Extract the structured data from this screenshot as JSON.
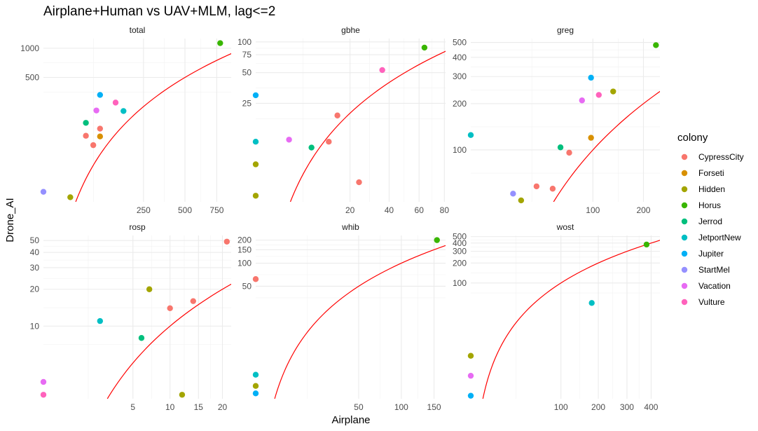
{
  "chart_data": {
    "type": "scatter",
    "title": "Airplane+Human vs UAV+MLM, lag<=2",
    "xlabel": "Airplane",
    "ylabel": "Drone_AI",
    "x_scale": "sqrt",
    "y_scale": "log10",
    "reference_line": "y = x",
    "grid": true,
    "legend": {
      "title": "colony",
      "position": "right",
      "entries": [
        {
          "name": "CypressCity",
          "color": "#F8766D"
        },
        {
          "name": "Forseti",
          "color": "#D89000"
        },
        {
          "name": "Hidden",
          "color": "#A3A500"
        },
        {
          "name": "Horus",
          "color": "#39B600"
        },
        {
          "name": "Jerrod",
          "color": "#00BF7D"
        },
        {
          "name": "JetportNew",
          "color": "#00BFC4"
        },
        {
          "name": "Jupiter",
          "color": "#00B0F6"
        },
        {
          "name": "StartMel",
          "color": "#9590FF"
        },
        {
          "name": "Vacation",
          "color": "#E76BF3"
        },
        {
          "name": "Vulture",
          "color": "#FF62BC"
        }
      ]
    },
    "panels": [
      {
        "name": "total",
        "xlim": [
          0,
          880
        ],
        "ylim": [
          26,
          1260
        ],
        "x_ticks": [
          250,
          500,
          750
        ],
        "x_tick_labels": [
          "250",
          "500",
          "750"
        ],
        "y_ticks": [
          500,
          1000
        ],
        "y_tick_labels": [
          "500",
          "1000"
        ],
        "points": [
          {
            "colony": "CypressCity",
            "x": 45,
            "y": 125
          },
          {
            "colony": "CypressCity",
            "x": 62,
            "y": 100
          },
          {
            "colony": "CypressCity",
            "x": 80,
            "y": 148
          },
          {
            "colony": "Forseti",
            "x": 80,
            "y": 123
          },
          {
            "colony": "Hidden",
            "x": 18,
            "y": 29
          },
          {
            "colony": "Horus",
            "x": 780,
            "y": 1130
          },
          {
            "colony": "Jerrod",
            "x": 45,
            "y": 170
          },
          {
            "colony": "JetportNew",
            "x": 160,
            "y": 225
          },
          {
            "colony": "Jupiter",
            "x": 80,
            "y": 330
          },
          {
            "colony": "StartMel",
            "x": 0,
            "y": 33
          },
          {
            "colony": "Vacation",
            "x": 70,
            "y": 228
          },
          {
            "colony": "Vulture",
            "x": 130,
            "y": 275
          }
        ]
      },
      {
        "name": "gbhe",
        "xlim": [
          0,
          81
        ],
        "ylim": [
          2.7,
          108
        ],
        "x_ticks": [
          20,
          40,
          60,
          80
        ],
        "x_tick_labels": [
          "20",
          "40",
          "60",
          "80"
        ],
        "y_ticks": [
          25,
          50,
          75,
          100
        ],
        "y_tick_labels": [
          "25",
          "50",
          "75",
          "100"
        ],
        "points": [
          {
            "colony": "CypressCity",
            "x": 12,
            "y": 10.5
          },
          {
            "colony": "CypressCity",
            "x": 15,
            "y": 19
          },
          {
            "colony": "CypressCity",
            "x": 24,
            "y": 4.2
          },
          {
            "colony": "Hidden",
            "x": 0,
            "y": 6.3
          },
          {
            "colony": "Hidden",
            "x": 0,
            "y": 3.1
          },
          {
            "colony": "Horus",
            "x": 64,
            "y": 88
          },
          {
            "colony": "Jerrod",
            "x": 7,
            "y": 9.2
          },
          {
            "colony": "JetportNew",
            "x": 0,
            "y": 10.5
          },
          {
            "colony": "Jupiter",
            "x": 0,
            "y": 30
          },
          {
            "colony": "Vacation",
            "x": 2.5,
            "y": 11
          },
          {
            "colony": "Vulture",
            "x": 36,
            "y": 53
          }
        ]
      },
      {
        "name": "greg",
        "xlim": [
          0,
          240
        ],
        "ylim": [
          46,
          530
        ],
        "x_ticks": [
          100,
          200
        ],
        "x_tick_labels": [
          "100",
          "200"
        ],
        "y_ticks": [
          100,
          200,
          300,
          400,
          500
        ],
        "y_tick_labels": [
          "100",
          "200",
          "300",
          "400",
          "500"
        ],
        "points": [
          {
            "colony": "CypressCity",
            "x": 29,
            "y": 58
          },
          {
            "colony": "CypressCity",
            "x": 45,
            "y": 56
          },
          {
            "colony": "CypressCity",
            "x": 65,
            "y": 96
          },
          {
            "colony": "Forseti",
            "x": 97,
            "y": 120
          },
          {
            "colony": "Hidden",
            "x": 17,
            "y": 47
          },
          {
            "colony": "Hidden",
            "x": 136,
            "y": 240
          },
          {
            "colony": "Horus",
            "x": 230,
            "y": 480
          },
          {
            "colony": "Jerrod",
            "x": 54,
            "y": 104
          },
          {
            "colony": "JetportNew",
            "x": 0,
            "y": 125
          },
          {
            "colony": "Jupiter",
            "x": 97,
            "y": 295
          },
          {
            "colony": "StartMel",
            "x": 12,
            "y": 52
          },
          {
            "colony": "Vacation",
            "x": 83,
            "y": 210
          },
          {
            "colony": "Vulture",
            "x": 110,
            "y": 228
          }
        ]
      },
      {
        "name": "rosp",
        "xlim": [
          0,
          22
        ],
        "ylim": [
          2.55,
          55
        ],
        "x_ticks": [
          5,
          10,
          15,
          20
        ],
        "x_tick_labels": [
          "5",
          "10",
          "15",
          "20"
        ],
        "y_ticks": [
          10,
          20,
          30,
          40,
          50
        ],
        "y_tick_labels": [
          "10",
          "20",
          "30",
          "40",
          "50"
        ],
        "points": [
          {
            "colony": "CypressCity",
            "x": 10,
            "y": 14
          },
          {
            "colony": "CypressCity",
            "x": 14,
            "y": 16
          },
          {
            "colony": "CypressCity",
            "x": 21,
            "y": 49
          },
          {
            "colony": "Hidden",
            "x": 7,
            "y": 20
          },
          {
            "colony": "Hidden",
            "x": 12,
            "y": 2.75
          },
          {
            "colony": "Jerrod",
            "x": 6,
            "y": 8
          },
          {
            "colony": "JetportNew",
            "x": 2,
            "y": 11
          },
          {
            "colony": "Vacation",
            "x": 0,
            "y": 3.5
          },
          {
            "colony": "Vulture",
            "x": 0,
            "y": 2.75
          }
        ]
      },
      {
        "name": "whib",
        "xlim": [
          0,
          170
        ],
        "ylim": [
          1.7,
          230
        ],
        "x_ticks": [
          50,
          100,
          150
        ],
        "x_tick_labels": [
          "50",
          "100",
          "150"
        ],
        "y_ticks": [
          50,
          100,
          150,
          200
        ],
        "y_tick_labels": [
          "50",
          "100",
          "150",
          "200"
        ],
        "points": [
          {
            "colony": "CypressCity",
            "x": 0,
            "y": 62
          },
          {
            "colony": "Hidden",
            "x": 0,
            "y": 2.5
          },
          {
            "colony": "Horus",
            "x": 155,
            "y": 200
          },
          {
            "colony": "JetportNew",
            "x": 0,
            "y": 3.5
          },
          {
            "colony": "Jupiter",
            "x": 0,
            "y": 2
          }
        ]
      },
      {
        "name": "wost",
        "xlim": [
          0,
          440
        ],
        "ylim": [
          1.8,
          520
        ],
        "x_ticks": [
          100,
          200,
          300,
          400
        ],
        "x_tick_labels": [
          "100",
          "200",
          "300",
          "400"
        ],
        "y_ticks": [
          100,
          200,
          300,
          400,
          500
        ],
        "y_tick_labels": [
          "100",
          "200",
          "300",
          "400",
          "500"
        ],
        "points": [
          {
            "colony": "Hidden",
            "x": 0,
            "y": 8
          },
          {
            "colony": "Horus",
            "x": 380,
            "y": 380
          },
          {
            "colony": "JetportNew",
            "x": 180,
            "y": 50
          },
          {
            "colony": "Jupiter",
            "x": 0,
            "y": 2
          },
          {
            "colony": "Vacation",
            "x": 0,
            "y": 4
          }
        ]
      }
    ]
  }
}
